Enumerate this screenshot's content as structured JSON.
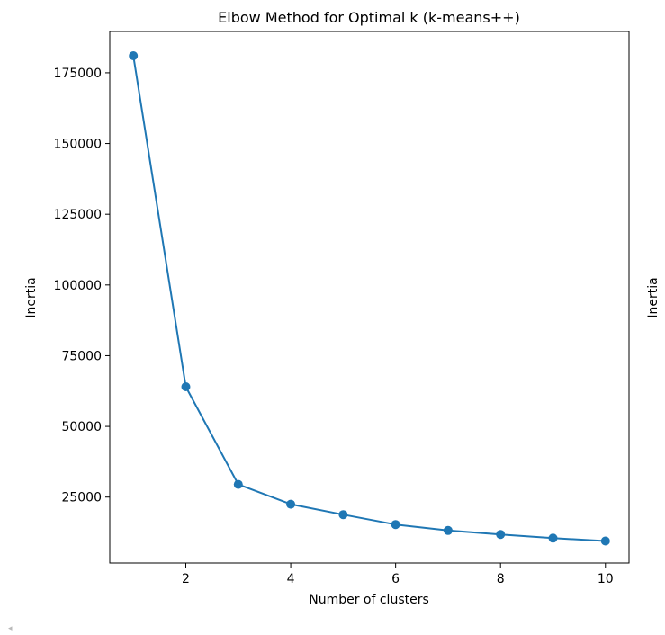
{
  "chart_data": {
    "type": "line",
    "title": "Elbow Method for Optimal k (k-means++)",
    "xlabel": "Number of clusters",
    "ylabel": "Inertia",
    "right_axis_label": "Inertia",
    "x": [
      1,
      2,
      3,
      4,
      5,
      6,
      7,
      8,
      9,
      10
    ],
    "series": [
      {
        "values": [
          181000,
          64000,
          29500,
          22500,
          18800,
          15300,
          13200,
          11800,
          10500,
          9500
        ],
        "color": "#1f77b4",
        "marker": "circle"
      }
    ],
    "xlim": [
      0.55,
      10.45
    ],
    "ylim": [
      1700,
      189600
    ],
    "xticks": [
      2,
      4,
      6,
      8,
      10
    ],
    "yticks": [
      25000,
      50000,
      75000,
      100000,
      125000,
      150000,
      175000
    ],
    "grid": false,
    "legend": false
  },
  "ui": {
    "scroll_left_glyph": "◂"
  }
}
